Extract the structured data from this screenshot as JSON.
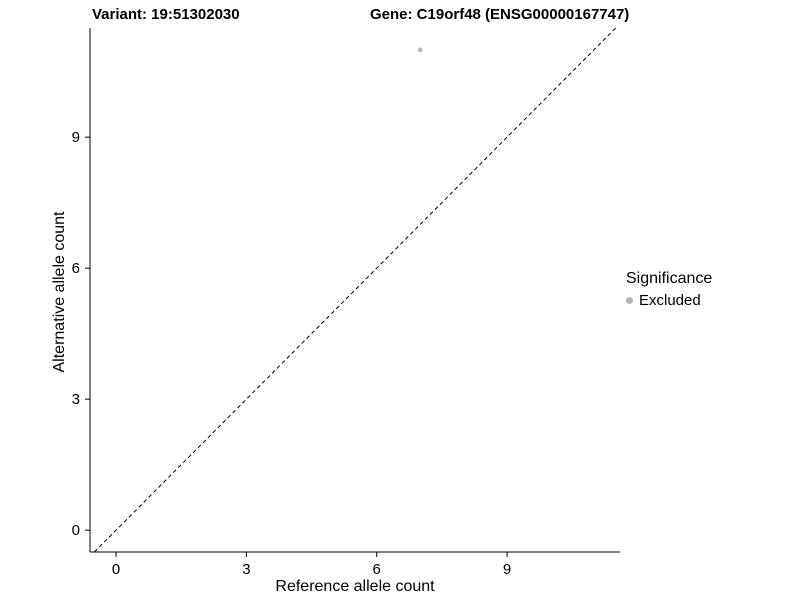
{
  "chart_data": {
    "type": "scatter",
    "title_left": "Variant: 19:51302030",
    "title_right": "Gene: C19orf48 (ENSG00000167747)",
    "xlabel": "Reference allele count",
    "ylabel": "Alternative allele count",
    "xlim": [
      -0.6,
      11.6
    ],
    "ylim": [
      -0.5,
      11.5
    ],
    "xticks": [
      0,
      3,
      6,
      9
    ],
    "yticks": [
      0,
      3,
      6,
      9
    ],
    "grid": false,
    "axis_color": "#000000",
    "point_radius": 2.3,
    "series": [
      {
        "name": "Excluded",
        "color": "#b4b4b4",
        "points": [
          {
            "x": 7,
            "y": 11
          }
        ]
      }
    ],
    "reference_line": {
      "type": "identity",
      "style": "dashed",
      "color": "#000000"
    },
    "legend": {
      "title": "Significance",
      "position": "right",
      "entries": [
        {
          "label": "Excluded",
          "color": "#b4b4b4"
        }
      ]
    }
  }
}
